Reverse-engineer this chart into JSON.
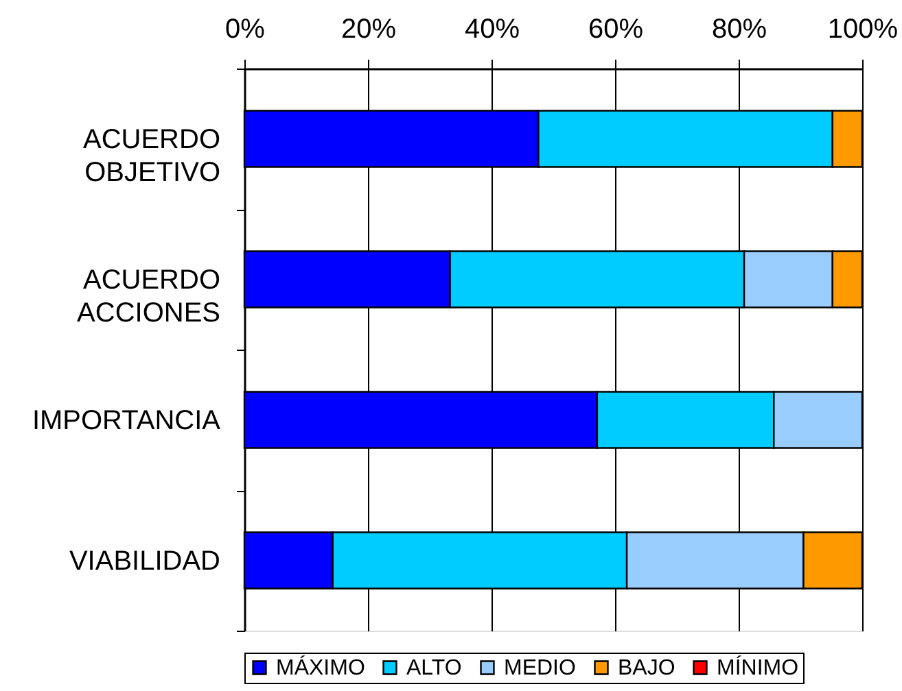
{
  "chart_data": {
    "type": "bar",
    "orientation": "horizontal",
    "stacked": true,
    "categories": [
      "ACUERDO OBJETIVO",
      "ACUERDO ACCIONES",
      "IMPORTANCIA",
      "VIABILIDAD"
    ],
    "series": [
      {
        "name": "MÁXIMO",
        "color": "#0000ff",
        "values": [
          47.6,
          33.3,
          57.1,
          14.3
        ]
      },
      {
        "name": "ALTO",
        "color": "#00ccff",
        "values": [
          47.6,
          47.6,
          28.6,
          47.6
        ]
      },
      {
        "name": "MEDIO",
        "color": "#99ccff",
        "values": [
          0,
          14.3,
          14.3,
          28.6
        ]
      },
      {
        "name": "BAJO",
        "color": "#ff9900",
        "values": [
          4.8,
          4.8,
          0,
          9.5
        ]
      },
      {
        "name": "MÍNIMO",
        "color": "#ff0000",
        "values": [
          0,
          0,
          0,
          0
        ]
      }
    ],
    "xlim": [
      0,
      100
    ],
    "xticks": [
      {
        "value": 0,
        "label": "0%"
      },
      {
        "value": 20,
        "label": "20%"
      },
      {
        "value": 40,
        "label": "40%"
      },
      {
        "value": 60,
        "label": "60%"
      },
      {
        "value": 80,
        "label": "80%"
      },
      {
        "value": 100,
        "label": "100%"
      }
    ],
    "grid": "x",
    "legend": "bottom"
  }
}
